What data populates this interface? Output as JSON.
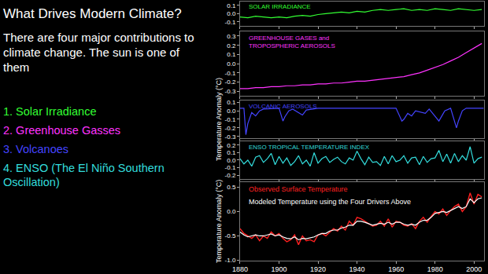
{
  "slide": {
    "title": "What Drives Modern Climate?",
    "text": "There are four major contributions to climate change.  The sun is one of them",
    "items": [
      {
        "text": "1.  Solar Irradiance",
        "color": "#33ff33"
      },
      {
        "text": "2.  Greenhouse Gasses",
        "color": "#ff33ff"
      },
      {
        "text": "3.   Volcanoes",
        "color": "#4444ff"
      },
      {
        "text": "4.  ENSO (The El Niño Southern Oscillation)",
        "color": "#33dddd"
      }
    ]
  },
  "chart_data": [
    {
      "type": "line",
      "x": [
        1880,
        1884,
        1888,
        1892,
        1896,
        1900,
        1904,
        1908,
        1912,
        1916,
        1920,
        1924,
        1928,
        1932,
        1936,
        1940,
        1944,
        1948,
        1952,
        1956,
        1960,
        1964,
        1968,
        1972,
        1976,
        1980,
        1984,
        1988,
        1992,
        1996,
        2000,
        2004
      ],
      "series": [
        {
          "name": "SOLAR IRRADIANCE",
          "color": "#33ff33",
          "values": [
            -0.04,
            -0.05,
            -0.03,
            -0.04,
            -0.05,
            -0.04,
            -0.05,
            -0.03,
            -0.02,
            -0.03,
            -0.01,
            0.0,
            0.01,
            0.02,
            0.01,
            0.03,
            0.02,
            0.04,
            0.05,
            0.04,
            0.05,
            0.06,
            0.04,
            0.05,
            0.04,
            0.06,
            0.05,
            0.04,
            0.06,
            0.05,
            0.04,
            0.05
          ]
        }
      ],
      "xlim": [
        1880,
        2005
      ],
      "xticks": [
        1880,
        1900,
        1920,
        1940,
        1960,
        1980,
        2000
      ],
      "ylim": [
        -0.15,
        0.15
      ],
      "yticks": [
        -0.1,
        {
          "value": 0,
          "label": "0.0"
        },
        0.1
      ],
      "grid": false,
      "tick_labels": "y"
    },
    {
      "type": "line",
      "x": [
        1880,
        1884,
        1888,
        1892,
        1896,
        1900,
        1904,
        1908,
        1912,
        1916,
        1920,
        1924,
        1928,
        1932,
        1936,
        1940,
        1944,
        1948,
        1952,
        1956,
        1960,
        1964,
        1968,
        1972,
        1976,
        1980,
        1984,
        1988,
        1992,
        1996,
        2000,
        2004
      ],
      "series": [
        {
          "name": "GREENHOUSE GASES and\nTROPOSPHERIC AEROSOLS",
          "color": "#ff33ff",
          "values": [
            -0.27,
            -0.27,
            -0.26,
            -0.26,
            -0.25,
            -0.25,
            -0.24,
            -0.24,
            -0.23,
            -0.23,
            -0.22,
            -0.22,
            -0.21,
            -0.21,
            -0.2,
            -0.19,
            -0.19,
            -0.18,
            -0.17,
            -0.16,
            -0.15,
            -0.14,
            -0.12,
            -0.1,
            -0.07,
            -0.04,
            -0.01,
            0.03,
            0.07,
            0.12,
            0.17,
            0.22
          ]
        }
      ],
      "xlim": [
        1880,
        2005
      ],
      "xticks": [
        1880,
        1900,
        1920,
        1940,
        1960,
        1980,
        2000
      ],
      "ylim": [
        -0.35,
        0.35
      ],
      "yticks": [
        -0.3,
        -0.2,
        -0.1,
        {
          "value": 0,
          "label": "0.0"
        },
        0.1,
        0.2,
        0.3
      ],
      "grid": false,
      "tick_labels": "y"
    },
    {
      "type": "line",
      "x": [
        1880,
        1882,
        1883,
        1884,
        1886,
        1888,
        1890,
        1892,
        1900,
        1902,
        1903,
        1905,
        1907,
        1912,
        1914,
        1920,
        1960,
        1963,
        1964,
        1966,
        1968,
        1970,
        1975,
        1977,
        1982,
        1983,
        1985,
        1988,
        1991,
        1992,
        1994,
        1996,
        2005
      ],
      "series": [
        {
          "name": "VOLCANIC AEROSOLS",
          "color": "#4444ff",
          "values": [
            0.03,
            0.03,
            -0.28,
            -0.15,
            -0.02,
            -0.06,
            0.0,
            0.02,
            0.03,
            -0.12,
            -0.07,
            0.0,
            0.02,
            -0.05,
            0.01,
            0.03,
            0.03,
            -0.12,
            -0.1,
            -0.03,
            -0.06,
            0.0,
            -0.03,
            0.02,
            -0.12,
            -0.08,
            0.0,
            0.03,
            -0.2,
            -0.12,
            0.0,
            0.03,
            0.03
          ]
        }
      ],
      "xlim": [
        1880,
        2005
      ],
      "xticks": [
        1880,
        1900,
        1920,
        1940,
        1960,
        1980,
        2000
      ],
      "ylim": [
        -0.32,
        0.12
      ],
      "yticks": [
        -0.3,
        -0.2,
        -0.1,
        {
          "value": 0,
          "label": "0.0"
        },
        0.1
      ],
      "ylabel": "Temperature Anomaly (°C)",
      "grid": false,
      "tick_labels": "y"
    },
    {
      "type": "line",
      "x": [
        1880,
        1882,
        1884,
        1886,
        1888,
        1890,
        1892,
        1894,
        1896,
        1898,
        1900,
        1902,
        1904,
        1906,
        1908,
        1910,
        1912,
        1914,
        1916,
        1918,
        1920,
        1922,
        1924,
        1926,
        1928,
        1930,
        1932,
        1934,
        1936,
        1938,
        1940,
        1942,
        1944,
        1946,
        1948,
        1950,
        1952,
        1954,
        1956,
        1958,
        1960,
        1962,
        1964,
        1966,
        1968,
        1970,
        1972,
        1974,
        1976,
        1978,
        1980,
        1982,
        1984,
        1986,
        1988,
        1990,
        1992,
        1994,
        1996,
        1998,
        2000,
        2002,
        2004
      ],
      "series": [
        {
          "name": "ENSO TROPICAL TEMPERATURE INDEX",
          "color": "#33dddd",
          "values": [
            0.02,
            -0.05,
            0.0,
            -0.08,
            0.04,
            0.06,
            -0.03,
            0.02,
            0.09,
            -0.06,
            0.05,
            -0.04,
            0.03,
            -0.07,
            -0.02,
            0.06,
            -0.05,
            0.0,
            -0.08,
            0.1,
            -0.04,
            0.02,
            0.05,
            -0.03,
            0.01,
            0.04,
            -0.02,
            -0.05,
            0.03,
            0.0,
            0.12,
            0.02,
            -0.06,
            0.04,
            -0.03,
            -0.02,
            -0.07,
            0.05,
            -0.05,
            0.06,
            -0.02,
            0.0,
            0.06,
            -0.04,
            0.03,
            0.04,
            -0.06,
            0.05,
            -0.03,
            0.02,
            0.03,
            0.13,
            -0.02,
            0.08,
            -0.04,
            0.09,
            -0.02,
            0.06,
            0.0,
            0.18,
            -0.04,
            0.02,
            0.04
          ]
        }
      ],
      "xlim": [
        1880,
        2005
      ],
      "xticks": [
        1880,
        1900,
        1920,
        1940,
        1960,
        1980,
        2000
      ],
      "ylim": [
        -0.25,
        0.25
      ],
      "yticks": [
        -0.2,
        -0.1,
        {
          "value": 0,
          "label": "0.0"
        },
        0.1,
        0.2
      ],
      "grid": false,
      "tick_labels": "y"
    },
    {
      "type": "line",
      "x": [
        1880,
        1882,
        1884,
        1886,
        1888,
        1890,
        1892,
        1894,
        1896,
        1898,
        1900,
        1902,
        1904,
        1906,
        1908,
        1910,
        1912,
        1914,
        1916,
        1918,
        1920,
        1922,
        1924,
        1926,
        1928,
        1930,
        1932,
        1934,
        1936,
        1938,
        1940,
        1942,
        1944,
        1946,
        1948,
        1950,
        1952,
        1954,
        1956,
        1958,
        1960,
        1962,
        1964,
        1966,
        1968,
        1970,
        1972,
        1974,
        1976,
        1978,
        1980,
        1982,
        1984,
        1986,
        1988,
        1990,
        1992,
        1994,
        1996,
        1998,
        2000,
        2002,
        2004
      ],
      "series": [
        {
          "name": "Observed Surface Temperature",
          "color": "#ff2020",
          "values": [
            -0.35,
            -0.45,
            -0.5,
            -0.55,
            -0.48,
            -0.6,
            -0.5,
            -0.55,
            -0.42,
            -0.5,
            -0.45,
            -0.55,
            -0.62,
            -0.58,
            -0.48,
            -0.68,
            -0.5,
            -0.6,
            -0.58,
            -0.62,
            -0.48,
            -0.45,
            -0.5,
            -0.42,
            -0.35,
            -0.4,
            -0.3,
            -0.38,
            -0.2,
            -0.28,
            -0.12,
            -0.15,
            -0.2,
            -0.25,
            -0.3,
            -0.28,
            -0.2,
            -0.3,
            -0.15,
            -0.32,
            -0.2,
            -0.22,
            -0.28,
            -0.3,
            -0.25,
            -0.35,
            -0.2,
            -0.12,
            -0.22,
            -0.1,
            0.0,
            -0.05,
            0.05,
            -0.08,
            0.02,
            0.1,
            0.15,
            0.0,
            0.1,
            0.38,
            0.15,
            0.35,
            0.3
          ]
        },
        {
          "name": "Modeled Temperature using the Four Drivers Above",
          "color": "#ffffff",
          "values": [
            -0.42,
            -0.48,
            -0.52,
            -0.5,
            -0.48,
            -0.5,
            -0.5,
            -0.48,
            -0.46,
            -0.5,
            -0.48,
            -0.52,
            -0.55,
            -0.56,
            -0.52,
            -0.58,
            -0.55,
            -0.56,
            -0.54,
            -0.52,
            -0.48,
            -0.45,
            -0.45,
            -0.4,
            -0.38,
            -0.38,
            -0.34,
            -0.32,
            -0.28,
            -0.28,
            -0.2,
            -0.2,
            -0.22,
            -0.25,
            -0.28,
            -0.26,
            -0.24,
            -0.26,
            -0.22,
            -0.26,
            -0.22,
            -0.22,
            -0.26,
            -0.28,
            -0.26,
            -0.28,
            -0.22,
            -0.18,
            -0.18,
            -0.12,
            -0.04,
            -0.02,
            0.0,
            -0.02,
            0.02,
            0.06,
            0.1,
            0.06,
            0.1,
            0.26,
            0.18,
            0.26,
            0.28
          ]
        }
      ],
      "xlim": [
        1880,
        2005
      ],
      "xticks": [
        1880,
        1900,
        1920,
        1940,
        1960,
        1980,
        2000
      ],
      "ylim": [
        -1.0,
        0.6
      ],
      "yticks": [
        {
          "value": -1,
          "label": "-1.0"
        },
        -0.5,
        {
          "value": 0,
          "label": "0.0"
        },
        0.5
      ],
      "ylabel": "Temperature Anomaly (°C)",
      "grid": false
    }
  ]
}
